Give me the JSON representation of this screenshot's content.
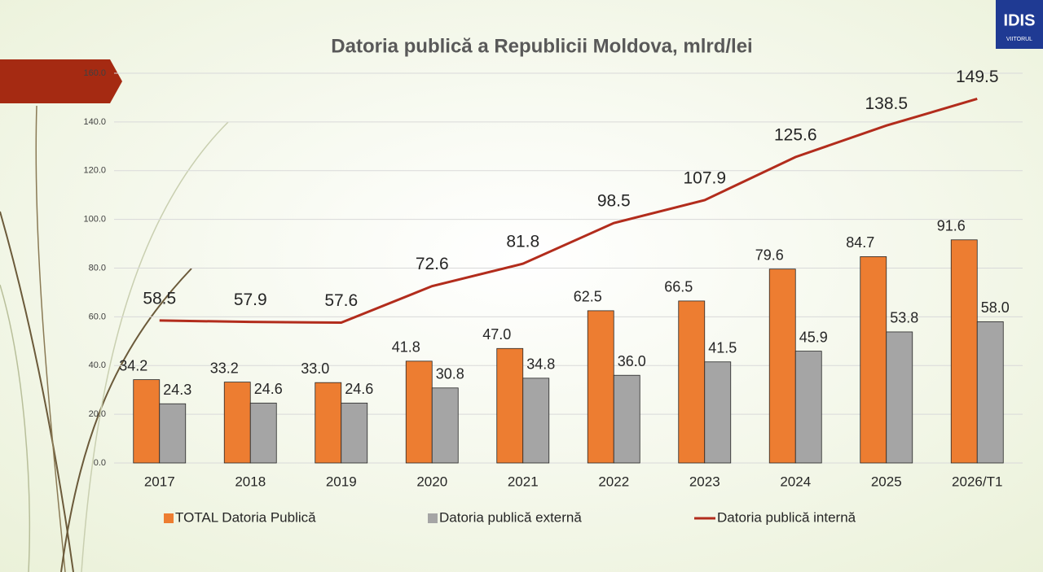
{
  "chart_data": {
    "type": "bar",
    "title": "Datoria publică a Republicii Moldova, mlrd/lei",
    "categories": [
      "2017",
      "2018",
      "2019",
      "2020",
      "2021",
      "2022",
      "2023",
      "2024",
      "2025",
      "2026/T1"
    ],
    "series": [
      {
        "name": "TOTAL Datoria Publică",
        "type": "bar",
        "color": "#ed7d31",
        "values": [
          34.2,
          33.2,
          33.0,
          41.8,
          47.0,
          62.5,
          66.5,
          79.6,
          84.7,
          91.6
        ],
        "value_labels": [
          "34.2",
          "33.2",
          "33.0",
          "41.8",
          "47.0",
          "62.5",
          "66.5",
          "79.6",
          "84.7",
          "91.6"
        ]
      },
      {
        "name": "Datoria publică externă",
        "type": "bar",
        "color": "#a5a5a5",
        "values": [
          24.3,
          24.6,
          24.6,
          30.8,
          34.8,
          36.0,
          41.5,
          45.9,
          53.8,
          58.0
        ],
        "value_labels": [
          "24.3",
          "24.6",
          "24.6",
          "30.8",
          "34.8",
          "36.0",
          "41.5",
          "45.9",
          "53.8",
          "58.0"
        ]
      },
      {
        "name": "Datoria publică internă",
        "type": "line",
        "color": "#b22c1c",
        "values": [
          58.5,
          57.9,
          57.6,
          72.6,
          81.8,
          98.5,
          107.9,
          125.6,
          138.5,
          149.5
        ],
        "value_labels": [
          "58.5",
          "57.9",
          "57.6",
          "72.6",
          "81.8",
          "98.5",
          "107.9",
          "125.6",
          "138.5",
          "149.5"
        ]
      }
    ],
    "ylim": [
      0,
      160
    ],
    "yticks": [
      {
        "value": 0,
        "label": "0.0"
      },
      {
        "value": 20,
        "label": "20.0"
      },
      {
        "value": 40,
        "label": "40.0"
      },
      {
        "value": 60,
        "label": "60.0"
      },
      {
        "value": 80,
        "label": "80.0"
      },
      {
        "value": 100,
        "label": "100.0"
      },
      {
        "value": 120,
        "label": "120.0"
      },
      {
        "value": 140,
        "label": "140.0"
      },
      {
        "value": 160,
        "label": "160.0"
      }
    ],
    "grid": true,
    "legend": "bottom"
  },
  "logo": {
    "name": "IDIS",
    "tagline": "VIITORUL"
  }
}
